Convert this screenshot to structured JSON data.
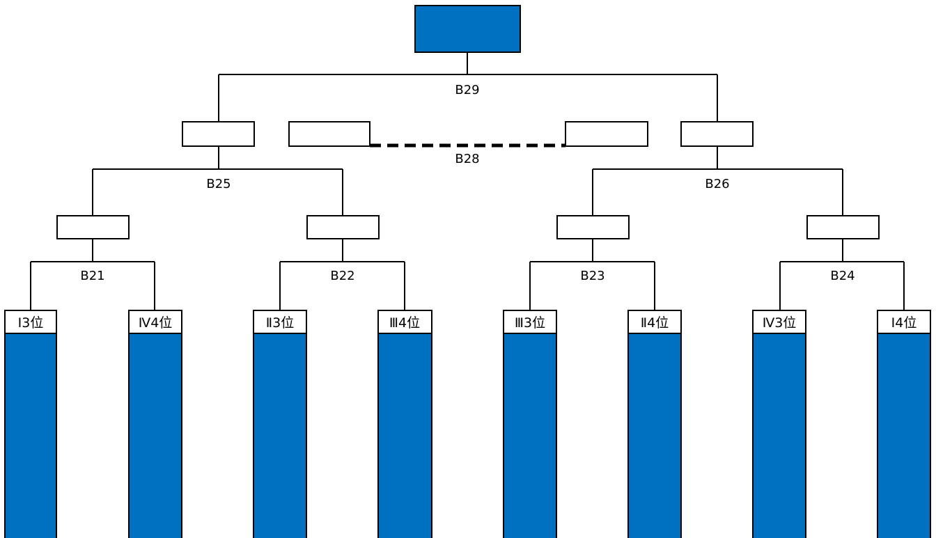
{
  "colors": {
    "fill": "#0070C0",
    "line": "#000000",
    "background": "#FFFFFF"
  },
  "matches": {
    "b21": "B21",
    "b22": "B22",
    "b23": "B23",
    "b24": "B24",
    "b25": "B25",
    "b26": "B26",
    "b28": "B28",
    "b29": "B29"
  },
  "seeds": [
    "Ⅰ3位",
    "Ⅳ4位",
    "Ⅱ3位",
    "Ⅲ4位",
    "Ⅲ3位",
    "Ⅱ4位",
    "Ⅳ3位",
    "Ⅰ4位"
  ]
}
